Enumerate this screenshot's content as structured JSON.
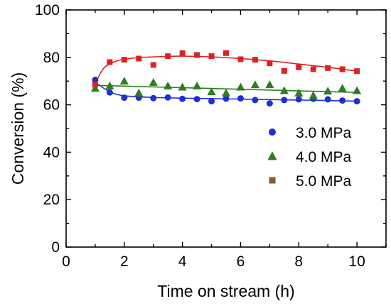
{
  "chart_data": {
    "type": "scatter",
    "title": "",
    "xlabel": "Time on stream (h)",
    "ylabel": "Conversion (%)",
    "xlim": [
      0,
      11
    ],
    "ylim": [
      0,
      100
    ],
    "xticks": [
      0,
      2,
      4,
      6,
      8,
      10
    ],
    "yticks": [
      0,
      20,
      40,
      60,
      80,
      100
    ],
    "grid": false,
    "legend_position": "right",
    "series": [
      {
        "name": "3.0 MPa",
        "marker": "circle",
        "color": "#1f2fd6",
        "x": [
          1.0,
          1.5,
          2.0,
          2.5,
          3.0,
          3.5,
          4.0,
          4.5,
          5.0,
          5.5,
          6.0,
          6.5,
          7.0,
          7.5,
          8.0,
          8.5,
          9.0,
          9.5,
          10.0
        ],
        "y": [
          70.5,
          65.2,
          63.0,
          63.0,
          62.8,
          63.1,
          62.5,
          62.4,
          61.5,
          62.6,
          62.7,
          62.0,
          60.6,
          62.0,
          62.3,
          62.5,
          62.3,
          61.8,
          61.5
        ],
        "fit": [
          [
            1.0,
            69.5
          ],
          [
            1.5,
            65.5
          ],
          [
            2.0,
            63.8
          ],
          [
            3.0,
            63.1
          ],
          [
            4.0,
            62.8
          ],
          [
            5.0,
            62.6
          ],
          [
            6.0,
            62.4
          ],
          [
            7.0,
            62.2
          ],
          [
            8.0,
            62.0
          ],
          [
            9.0,
            61.8
          ],
          [
            10.0,
            61.5
          ]
        ]
      },
      {
        "name": "4.0 MPa",
        "marker": "triangle",
        "color": "#2e7d1e",
        "x": [
          1.0,
          1.5,
          2.0,
          2.5,
          3.0,
          3.5,
          4.0,
          4.5,
          5.0,
          5.5,
          6.0,
          6.5,
          7.0,
          7.5,
          8.0,
          8.5,
          9.0,
          9.5,
          10.0
        ],
        "y": [
          67.0,
          68.0,
          70.0,
          65.0,
          69.5,
          68.0,
          67.5,
          68.0,
          65.5,
          65.0,
          67.5,
          68.5,
          68.5,
          66.0,
          65.0,
          64.0,
          65.8,
          67.0,
          66.0
        ],
        "fit": [
          [
            1.0,
            68.2
          ],
          [
            10.0,
            65.2
          ]
        ]
      },
      {
        "name": "5.0 MPa",
        "marker": "square",
        "color": "#e02020",
        "legend_color": "#8a5a2b",
        "x": [
          1.0,
          1.5,
          2.0,
          2.5,
          3.0,
          3.5,
          4.0,
          4.5,
          5.0,
          5.5,
          6.0,
          6.5,
          7.0,
          7.5,
          8.0,
          8.5,
          9.0,
          9.5,
          10.0
        ],
        "y": [
          68.5,
          78.0,
          79.0,
          79.5,
          76.8,
          80.5,
          81.8,
          81.0,
          80.5,
          81.8,
          79.2,
          79.0,
          77.5,
          74.3,
          75.8,
          75.0,
          75.5,
          75.0,
          74.2
        ],
        "fit": [
          [
            1.0,
            69.0
          ],
          [
            1.3,
            75.5
          ],
          [
            1.7,
            78.3
          ],
          [
            2.0,
            79.2
          ],
          [
            2.5,
            79.9
          ],
          [
            3.0,
            80.2
          ],
          [
            3.5,
            80.4
          ],
          [
            4.0,
            80.5
          ],
          [
            5.0,
            80.2
          ],
          [
            6.0,
            79.5
          ],
          [
            7.0,
            78.5
          ],
          [
            8.0,
            77.2
          ],
          [
            9.0,
            75.8
          ],
          [
            10.0,
            74.2
          ]
        ]
      }
    ]
  }
}
